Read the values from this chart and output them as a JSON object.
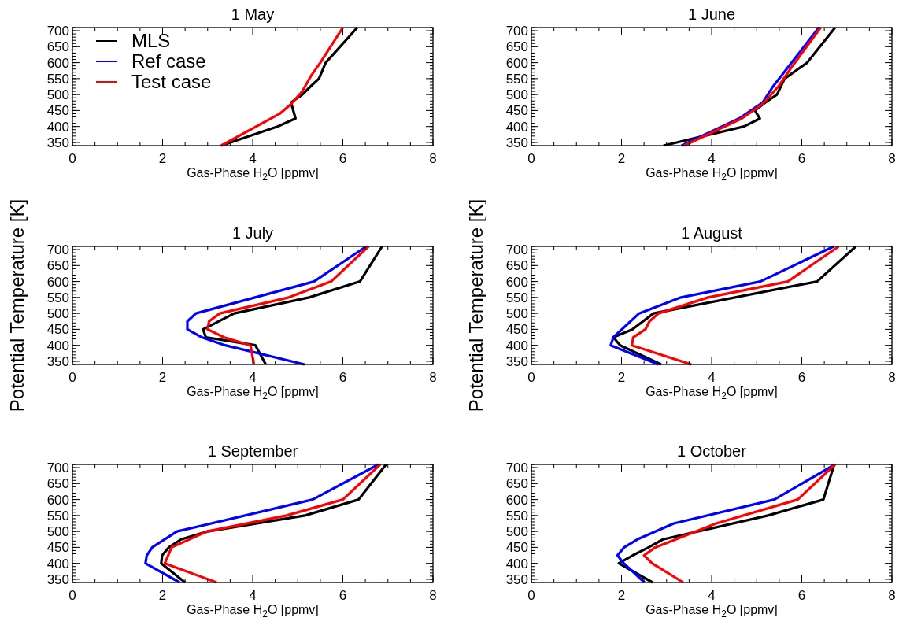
{
  "chart_data": [
    {
      "type": "line",
      "title": "1 May",
      "xlabel": "Gas-Phase H$_{2}$O [ppmv]",
      "xlim": [
        0,
        8
      ],
      "xticks": [
        0,
        2,
        4,
        6,
        8
      ],
      "ylim": [
        340,
        710
      ],
      "yticks": [
        350,
        400,
        450,
        500,
        550,
        600,
        650,
        700
      ],
      "legend": "top left",
      "series": [
        {
          "name": "MLS",
          "color": "#000000",
          "x": [
            3.3,
            4.55,
            4.95,
            4.85,
            5.1,
            5.28,
            5.47,
            5.62,
            6.32
          ],
          "values": [
            340,
            400,
            425,
            475,
            500,
            525,
            550,
            600,
            710
          ]
        },
        {
          "name": "Ref case",
          "color": "#0000ff",
          "x": [
            null,
            null,
            null,
            null,
            null,
            null,
            null
          ],
          "values": [
            null,
            null,
            null,
            null,
            null,
            null,
            null
          ]
        },
        {
          "name": "Test case",
          "color": "#ff0000",
          "x": [
            3.3,
            4.6,
            4.85,
            5.1,
            5.3,
            5.5,
            6.0
          ],
          "values": [
            340,
            440,
            470,
            510,
            560,
            600,
            710
          ]
        }
      ]
    },
    {
      "type": "line",
      "title": "1 June",
      "xlabel": "Gas-Phase H$_{2}$O [ppmv]",
      "xlim": [
        0,
        8
      ],
      "xticks": [
        0,
        2,
        4,
        6,
        8
      ],
      "ylim": [
        340,
        710
      ],
      "yticks": [
        350,
        400,
        450,
        500,
        550,
        600,
        650,
        700
      ],
      "legend": false,
      "series": [
        {
          "color": "#000000",
          "x": [
            2.93,
            4.72,
            5.07,
            4.96,
            5.19,
            5.45,
            5.62,
            6.12,
            6.74
          ],
          "values": [
            340,
            400,
            425,
            450,
            475,
            500,
            550,
            600,
            710
          ]
        },
        {
          "color": "#0000ff",
          "x": [
            3.33,
            4.61,
            5.13,
            5.36,
            6.38
          ],
          "values": [
            340,
            425,
            475,
            525,
            710
          ]
        },
        {
          "color": "#ff0000",
          "x": [
            3.39,
            4.67,
            5.13,
            5.48,
            5.77,
            6.42
          ],
          "values": [
            340,
            425,
            470,
            525,
            585,
            710
          ]
        }
      ]
    },
    {
      "type": "line",
      "title": "1 July",
      "xlabel": "Gas-Phase H$_{2}$O [ppmv]",
      "ylabel": "Potential Temperature [K]",
      "xlim": [
        0,
        8
      ],
      "xticks": [
        0,
        2,
        4,
        6,
        8
      ],
      "ylim": [
        340,
        710
      ],
      "yticks": [
        350,
        400,
        450,
        500,
        550,
        600,
        650,
        700
      ],
      "legend": false,
      "series": [
        {
          "color": "#000000",
          "x": [
            4.29,
            4.06,
            2.96,
            2.9,
            3.59,
            5.25,
            6.38,
            6.87
          ],
          "values": [
            340,
            400,
            425,
            450,
            500,
            550,
            600,
            710
          ]
        },
        {
          "color": "#0000ff",
          "x": [
            5.15,
            3.39,
            2.87,
            2.55,
            2.55,
            2.74,
            5.36,
            6.52
          ],
          "values": [
            340,
            400,
            425,
            450,
            475,
            500,
            600,
            710
          ]
        },
        {
          "color": "#ff0000",
          "x": [
            4.03,
            3.95,
            3.36,
            3.0,
            3.03,
            3.27,
            4.8,
            5.74,
            6.57
          ],
          "values": [
            340,
            400,
            425,
            450,
            475,
            500,
            550,
            600,
            710
          ]
        }
      ]
    },
    {
      "type": "line",
      "title": "1 August",
      "xlabel": "Gas-Phase H$_{2}$O [ppmv]",
      "ylabel": "Potential Temperature [K]",
      "xlim": [
        0,
        8
      ],
      "xticks": [
        0,
        2,
        4,
        6,
        8
      ],
      "ylim": [
        340,
        710
      ],
      "yticks": [
        350,
        400,
        450,
        500,
        550,
        600,
        650,
        700
      ],
      "legend": false,
      "series": [
        {
          "color": "#000000",
          "x": [
            2.88,
            1.97,
            1.82,
            2.24,
            2.71,
            6.34,
            7.2
          ],
          "values": [
            340,
            400,
            425,
            450,
            500,
            600,
            710
          ]
        },
        {
          "color": "#0000ff",
          "x": [
            2.82,
            1.76,
            1.82,
            2.39,
            3.32,
            5.08,
            6.71
          ],
          "values": [
            340,
            400,
            425,
            500,
            550,
            600,
            710
          ]
        },
        {
          "color": "#ff0000",
          "x": [
            3.55,
            2.23,
            2.26,
            2.53,
            2.62,
            2.82,
            3.92,
            5.69,
            6.82
          ],
          "values": [
            340,
            400,
            425,
            450,
            475,
            500,
            550,
            600,
            710
          ]
        }
      ]
    },
    {
      "type": "line",
      "title": "1 September",
      "xlabel": "Gas-Phase H$_{2}$O [ppmv]",
      "xlim": [
        0,
        8
      ],
      "xticks": [
        0,
        2,
        4,
        6,
        8
      ],
      "ylim": [
        340,
        710
      ],
      "yticks": [
        350,
        400,
        450,
        500,
        550,
        600,
        650,
        700
      ],
      "legend": false,
      "series": [
        {
          "color": "#000000",
          "x": [
            2.5,
            1.97,
            1.99,
            2.14,
            2.41,
            3.0,
            5.16,
            6.35,
            6.96
          ],
          "values": [
            340,
            400,
            425,
            450,
            475,
            500,
            550,
            600,
            710
          ]
        },
        {
          "color": "#0000ff",
          "x": [
            2.38,
            1.62,
            1.65,
            1.77,
            2.32,
            5.33,
            6.79
          ],
          "values": [
            340,
            400,
            425,
            450,
            500,
            600,
            710
          ]
        },
        {
          "color": "#ff0000",
          "x": [
            3.2,
            2.05,
            2.2,
            2.99,
            4.75,
            6.0,
            6.83
          ],
          "values": [
            340,
            400,
            450,
            500,
            550,
            600,
            710
          ]
        }
      ]
    },
    {
      "type": "line",
      "title": "1 October",
      "xlabel": "Gas-Phase H$_{2}$O [ppmv]",
      "xlim": [
        0,
        8
      ],
      "xticks": [
        0,
        2,
        4,
        6,
        8
      ],
      "ylim": [
        340,
        710
      ],
      "yticks": [
        350,
        400,
        450,
        500,
        550,
        600,
        650,
        700
      ],
      "legend": false,
      "series": [
        {
          "color": "#000000",
          "x": [
            2.69,
            1.94,
            2.25,
            2.6,
            2.92,
            5.25,
            6.48,
            6.72
          ],
          "values": [
            340,
            400,
            425,
            450,
            475,
            550,
            600,
            710
          ]
        },
        {
          "color": "#0000ff",
          "x": [
            2.51,
            2.05,
            1.91,
            2.06,
            2.35,
            3.16,
            5.39,
            6.74
          ],
          "values": [
            340,
            400,
            425,
            450,
            475,
            525,
            600,
            710
          ]
        },
        {
          "color": "#ff0000",
          "x": [
            3.37,
            2.68,
            2.5,
            2.75,
            4.1,
            5.91,
            6.74
          ],
          "values": [
            340,
            400,
            425,
            450,
            525,
            600,
            710
          ]
        }
      ]
    }
  ]
}
